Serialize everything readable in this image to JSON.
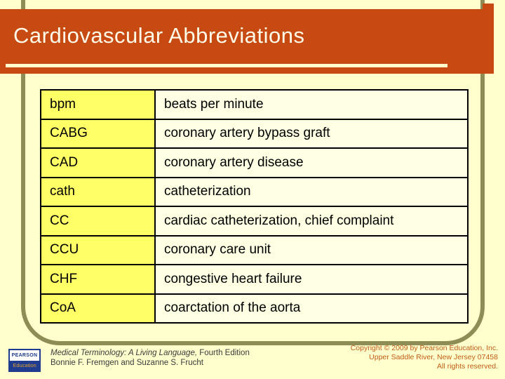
{
  "slide": {
    "title": "Cardiovascular Abbreviations"
  },
  "table": {
    "rows": [
      {
        "abbr": "bpm",
        "meaning": "beats per minute"
      },
      {
        "abbr": "CABG",
        "meaning": "coronary artery bypass graft"
      },
      {
        "abbr": "CAD",
        "meaning": "coronary artery disease"
      },
      {
        "abbr": "cath",
        "meaning": "catheterization"
      },
      {
        "abbr": "CC",
        "meaning": "cardiac catheterization, chief complaint"
      },
      {
        "abbr": "CCU",
        "meaning": "coronary care unit"
      },
      {
        "abbr": "CHF",
        "meaning": "congestive heart failure"
      },
      {
        "abbr": "CoA",
        "meaning": "coarctation of the aorta"
      }
    ]
  },
  "footer": {
    "logo": {
      "top": "PEARSON",
      "bottom": "Education"
    },
    "book_title": "Medical Terminology: A Living Language,",
    "book_edition": " Fourth Edition",
    "authors": "Bonnie F. Fremgen and Suzanne S. Frucht",
    "copyright_line1": "Copyright © 2009 by Pearson Education, Inc.",
    "copyright_line2": "Upper Saddle River, New Jersey 07458",
    "copyright_line3": "All rights reserved."
  },
  "colors": {
    "background": "#FFFFCD",
    "banner": "#C74A12",
    "frame_olive": "#8D8D55",
    "abbr_cell_yellow": "#FFFF66",
    "meaning_cell_ivory": "#FFFFE3",
    "copyright_orange": "#BF5B16",
    "pearson_blue": "#1F3C8F",
    "pearson_education_orange": "#E0A030"
  }
}
